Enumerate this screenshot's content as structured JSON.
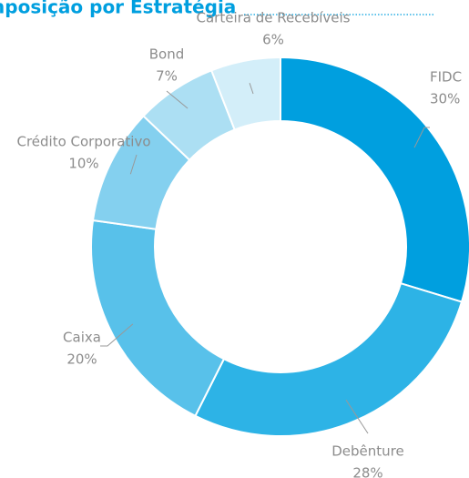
{
  "chart_data": {
    "type": "pie",
    "title": "Composição por Estratégia",
    "categories": [
      "FIDC",
      "Debênture",
      "Caixa",
      "Crédito Corporativo",
      "Bond",
      "Carteira de Recebíveis"
    ],
    "values": [
      30,
      28,
      20,
      10,
      7,
      6
    ],
    "value_labels": [
      "30%",
      "28%",
      "20%",
      "10%",
      "7%",
      "6%"
    ],
    "colors": [
      "#009fdf",
      "#2db3e6",
      "#58c1ea",
      "#84d0ef",
      "#acdff3",
      "#d3eef9"
    ]
  }
}
